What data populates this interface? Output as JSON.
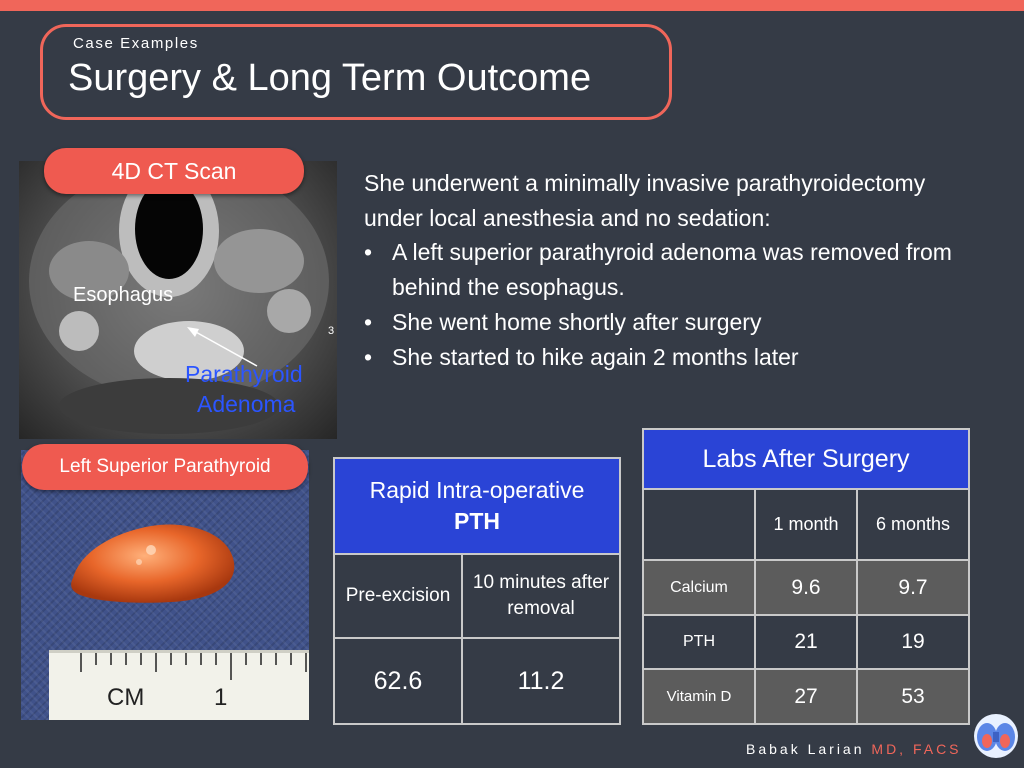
{
  "header": {
    "subtitle": "Case Examples",
    "title": "Surgery & Long Term Outcome"
  },
  "images": {
    "ct": {
      "pill": "4D CT Scan",
      "label_esophagus": "Esophagus",
      "label_adenoma_line1": "Parathyroid",
      "label_adenoma_line2": "Adenoma",
      "side_mark": "3"
    },
    "specimen": {
      "pill": "Left Superior Parathyroid",
      "ruler_label": "CM",
      "ruler_number": "1"
    }
  },
  "body": {
    "intro": "She underwent a minimally invasive parathyroidectomy under local anesthesia and no sedation:",
    "bullet_symbol": "•",
    "bullets": [
      "A left superior parathyroid adenoma was removed from behind the esophagus.",
      "She went home shortly after surgery",
      "She started to hike again 2 months later"
    ]
  },
  "pth_table": {
    "header_line1": "Rapid Intra-operative",
    "header_line2": "PTH",
    "col1_label": "Pre-excision",
    "col2_label": "10 minutes after removal",
    "col1_value": "62.6",
    "col2_value": "11.2"
  },
  "labs_table": {
    "header": "Labs After Surgery",
    "columns": [
      "",
      "1 month",
      "6 months"
    ],
    "rows": [
      {
        "label": "Calcium",
        "m1": "9.6",
        "m6": "9.7"
      },
      {
        "label": "PTH",
        "m1": "21",
        "m6": "19"
      },
      {
        "label": "Vitamin D",
        "m1": "27",
        "m6": "53"
      }
    ]
  },
  "footer": {
    "name": "Babak Larian",
    "credentials": "MD, FACS"
  },
  "colors": {
    "background": "#353b46",
    "accent": "#f0665a",
    "table_header": "#2a44d6",
    "table_gray": "#5c5c5c",
    "label_blue": "#2b55ff"
  }
}
